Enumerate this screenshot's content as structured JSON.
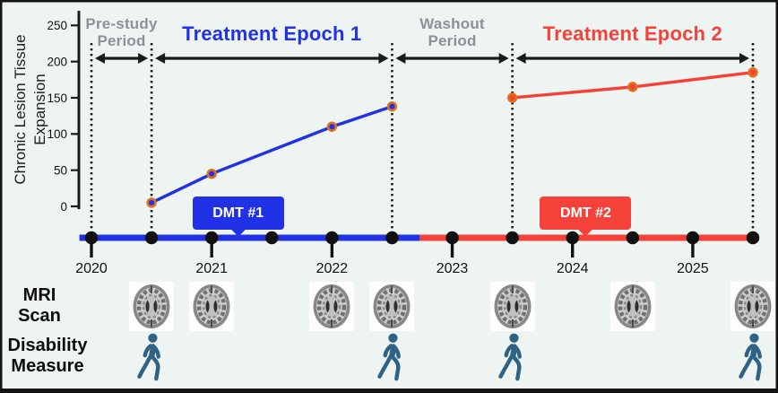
{
  "figure": {
    "background_color": "#eef4f1",
    "y_axis": {
      "title": "Chronic Lesion Tissue\nExpansion",
      "ticks": [
        0,
        50,
        100,
        150,
        200,
        250
      ]
    },
    "guide_years": [
      2020,
      2020.5,
      2022.5,
      2023.5,
      2025.5
    ],
    "periods": [
      {
        "id": "pre-study",
        "label": "Pre-study\nPeriod",
        "color": "#8b9196",
        "start_year": 2020,
        "end_year": 2020.5
      },
      {
        "id": "epoch-1",
        "label": "Treatment Epoch 1",
        "color": "#2132e6",
        "start_year": 2020.5,
        "end_year": 2022.5
      },
      {
        "id": "washout",
        "label": "Washout\nPeriod",
        "color": "#8b9196",
        "start_year": 2022.5,
        "end_year": 2023.5
      },
      {
        "id": "epoch-2",
        "label": "Treatment Epoch 2",
        "color": "#f4423a",
        "start_year": 2023.5,
        "end_year": 2025.5
      }
    ],
    "dmt_callouts": [
      {
        "label": "DMT #1",
        "color": "#2132e6",
        "at_year": 2021.22
      },
      {
        "label": "DMT #2",
        "color": "#f4423a",
        "at_year": 2024.11
      }
    ],
    "timeline": {
      "years": [
        2020,
        2021,
        2022,
        2023,
        2024,
        2025
      ],
      "dot_start": 2020,
      "dot_end": 2025.5,
      "dot_step": 0.5,
      "segments": [
        {
          "color": "#2132e6",
          "from": 2019.9,
          "to": 2022.73
        },
        {
          "color": "#f4423a",
          "from": 2022.73,
          "to": 2025.55
        }
      ]
    },
    "rows": {
      "mri": {
        "label": "MRI\nScan",
        "icon": "mri-brain-icon",
        "years": [
          2020.5,
          2021,
          2022,
          2022.5,
          2023.5,
          2024.5,
          2025.5
        ]
      },
      "disability": {
        "label": "Disability\nMeasure",
        "icon": "walking-person-icon",
        "icon_color": "#2e6385",
        "years": [
          2020.5,
          2022.5,
          2023.5,
          2025.5
        ]
      }
    }
  },
  "chart_data": {
    "type": "line",
    "title": "",
    "xlabel": "",
    "ylabel": "Chronic Lesion Tissue Expansion",
    "ylim": [
      0,
      250
    ],
    "x_range": [
      2020,
      2025.5
    ],
    "grid": false,
    "legend": false,
    "series": [
      {
        "name": "Treatment Epoch 1 lesion expansion",
        "color": "#2132e6",
        "x": [
          2020.5,
          2021,
          2022,
          2022.5
        ],
        "values": [
          5,
          45,
          110,
          138
        ]
      },
      {
        "name": "Treatment Epoch 2 lesion expansion",
        "color": "#f4423a",
        "x": [
          2023.5,
          2024.5,
          2025.5
        ],
        "values": [
          150,
          165,
          185
        ]
      }
    ],
    "marker": {
      "ring_color": "#e2711d"
    }
  }
}
